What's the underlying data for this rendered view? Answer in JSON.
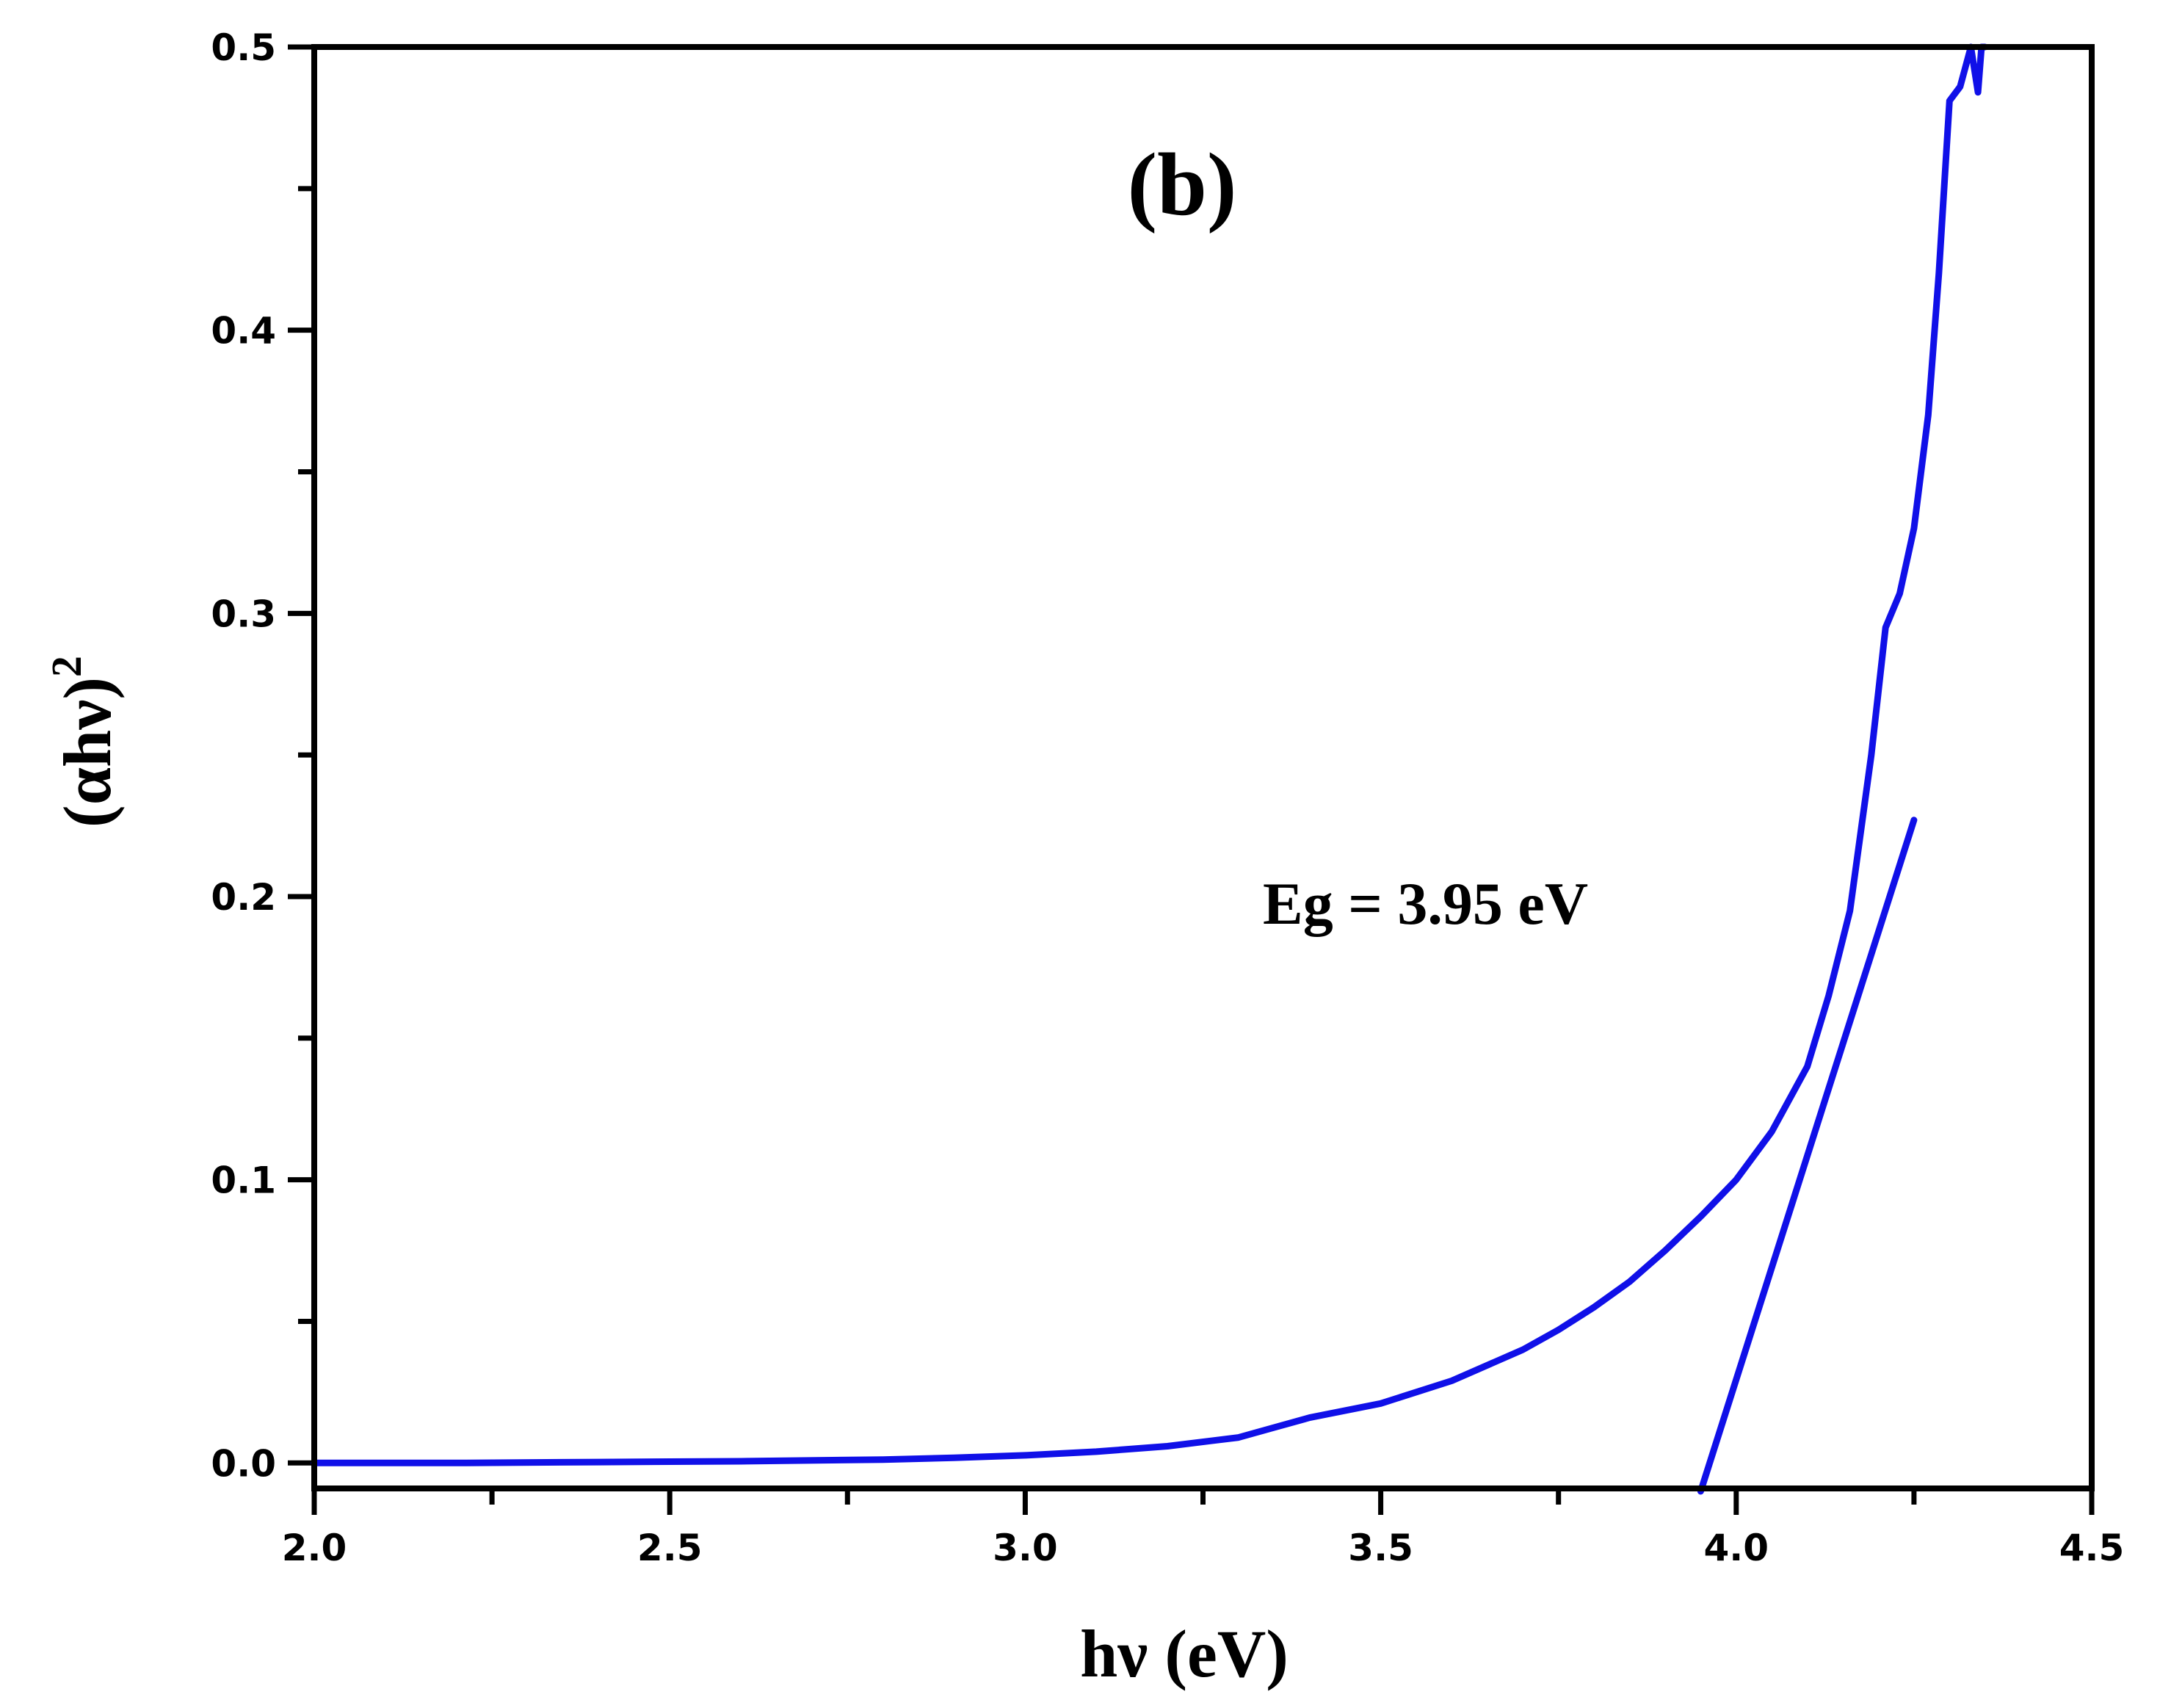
{
  "chart_data": {
    "type": "line",
    "title": "",
    "panel_label": "(b)",
    "xlabel": "hν (eV)",
    "ylabel_base": "(αhν)",
    "ylabel_sup": "2",
    "xlim": [
      2.0,
      4.5
    ],
    "ylim": [
      -0.009,
      0.5
    ],
    "x_ticks": [
      "2.0",
      "2.5",
      "3.0",
      "3.5",
      "4.0",
      "4.5"
    ],
    "y_ticks": [
      "0.0",
      "0.1",
      "0.2",
      "0.3",
      "0.4",
      "0.5"
    ],
    "x_tick_values": [
      2.0,
      2.5,
      3.0,
      3.5,
      4.0,
      4.5
    ],
    "y_tick_values": [
      0.0,
      0.1,
      0.2,
      0.3,
      0.4,
      0.5
    ],
    "grid": false,
    "line_color": "#1010e8",
    "annotation": "Eg = 3.95 eV",
    "series": [
      {
        "x": [
          2.0,
          2.2,
          2.4,
          2.6,
          2.8,
          2.9,
          3.0,
          3.1,
          3.2,
          3.3,
          3.35,
          3.4,
          3.5,
          3.6,
          3.7,
          3.75,
          3.8,
          3.85,
          3.9,
          3.95,
          4.0,
          4.05,
          4.1,
          4.13,
          4.16,
          4.19,
          4.21,
          4.23,
          4.25,
          4.27,
          4.285,
          4.3,
          4.315,
          4.33,
          4.34,
          4.345,
          4.35
        ],
        "y": [
          0.0,
          0.0,
          0.0003,
          0.0006,
          0.0012,
          0.0018,
          0.0027,
          0.004,
          0.0059,
          0.009,
          0.0125,
          0.016,
          0.021,
          0.029,
          0.04,
          0.047,
          0.055,
          0.064,
          0.075,
          0.087,
          0.1,
          0.117,
          0.14,
          0.165,
          0.195,
          0.25,
          0.295,
          0.307,
          0.33,
          0.37,
          0.42,
          0.481,
          0.486,
          0.5,
          0.484,
          0.5,
          0.5
        ]
      },
      {
        "x": [
          3.95,
          4.25
        ],
        "y": [
          -0.01,
          0.227
        ]
      }
    ]
  }
}
